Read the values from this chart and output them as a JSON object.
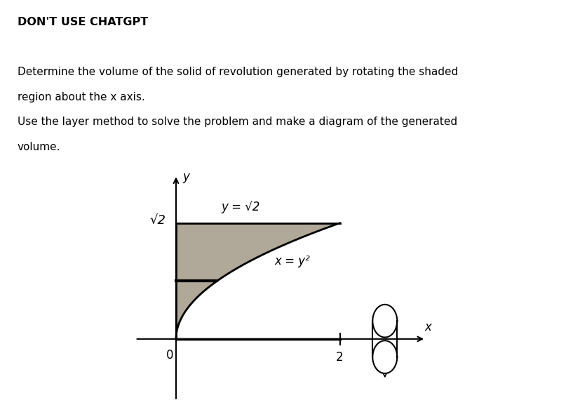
{
  "title_line": "DON'T USE CHATGPT",
  "problem_line1": "Determine the volume of the solid of revolution generated by rotating the shaded",
  "problem_line2": "region about the x axis.",
  "problem_line3": "Use the layer method to solve the problem and make a diagram of the generated",
  "problem_line4": "volume.",
  "bg_color_outer": "#ffffff",
  "bg_color_diagram": "#cdc8bc",
  "shade_color": "#b0a898",
  "axis_color": "#000000",
  "curve_color": "#000000",
  "label_sqrt2_y": "√2",
  "label_y_eq": "y = √2",
  "label_x_eq": "x = y²",
  "label_2": "2",
  "label_0": "0",
  "label_y_axis": "y",
  "label_x_axis": "x",
  "sqrt2": 1.4142135623730951,
  "xmin": -0.55,
  "xmax": 3.2,
  "ymin": -0.85,
  "ymax": 2.1
}
